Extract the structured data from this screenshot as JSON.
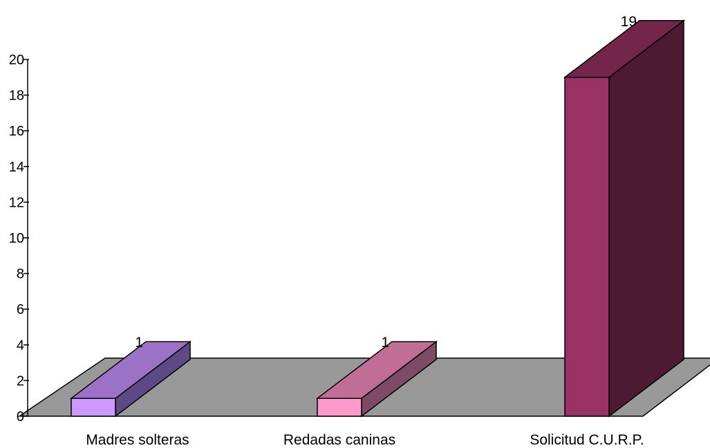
{
  "chart_data": {
    "type": "bar",
    "categories": [
      "Madres solteras",
      "Redadas caninas",
      "Solicitud C.U.R.P."
    ],
    "values": [
      1,
      1,
      19
    ],
    "data_labels": [
      "1",
      "1",
      "19"
    ],
    "yticks": [
      "0",
      "2",
      "4",
      "6",
      "8",
      "10",
      "12",
      "14",
      "16",
      "18",
      "20"
    ],
    "ylim": [
      0,
      20
    ],
    "three_d": true,
    "grid": false,
    "legend": "none",
    "floor_color": "#999999",
    "bar_colors": [
      {
        "front": "#CC99FF",
        "top": "#9B72C6",
        "side": "#5E4987"
      },
      {
        "front": "#FF99CC",
        "top": "#C06E96",
        "side": "#7E4A66"
      },
      {
        "front": "#993366",
        "top": "#732649",
        "side": "#4D1A33"
      }
    ]
  }
}
